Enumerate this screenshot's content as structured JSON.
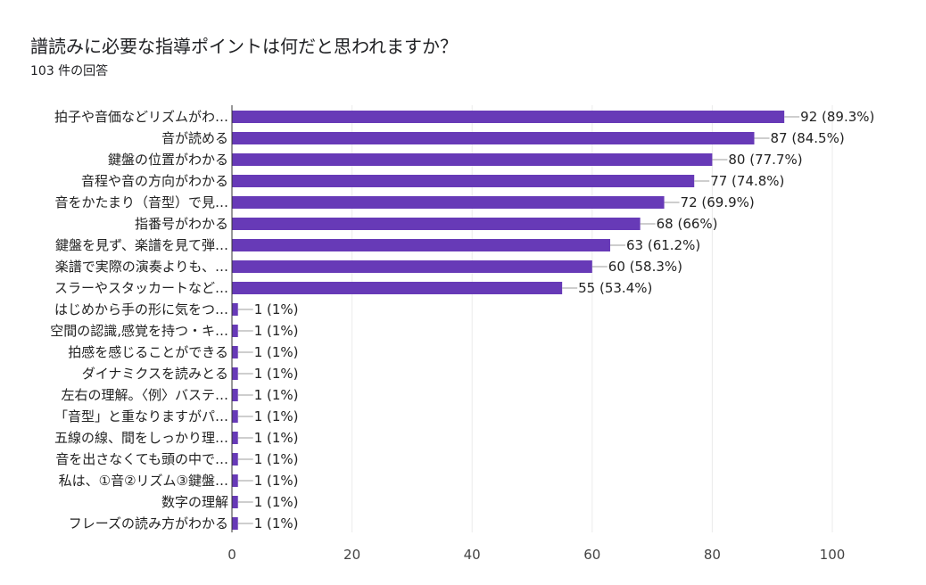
{
  "colors": {
    "bar": "#673ab7",
    "grid": "#ebebeb",
    "axis": "#333333",
    "leader": "#9e9e9e"
  },
  "chart_data": {
    "type": "bar",
    "orientation": "horizontal",
    "title": "譜読みに必要な指導ポイントは何だと思われますか？",
    "subtitle": "103 件の回答",
    "xlim": [
      0,
      100
    ],
    "xticks": [
      0,
      20,
      40,
      60,
      80,
      100
    ],
    "grid": true,
    "categories": [
      "拍子や音価などリズムがわ…",
      "音が読める",
      "鍵盤の位置がわかる",
      "音程や音の方向がわかる",
      "音をかたまり（音型）で見…",
      "指番号がわかる",
      "鍵盤を見ず、楽譜を見て弾…",
      "楽譜で実際の演奏よりも、…",
      "スラーやスタッカートなど…",
      "はじめから手の形に気をつ…",
      "空間の認識,感覚を持つ・キ…",
      "拍感を感じることができる",
      "ダイナミクスを読みとる",
      "左右の理解。〈例〉バステ…",
      "「音型」と重なりますがパ…",
      "五線の線、間をしっかり理…",
      "音を出さなくても頭の中で…",
      "私は、①音②リズム③鍵盤…",
      "数字の理解",
      "フレーズの読み方がわかる"
    ],
    "values": [
      92,
      87,
      80,
      77,
      72,
      68,
      63,
      60,
      55,
      1,
      1,
      1,
      1,
      1,
      1,
      1,
      1,
      1,
      1,
      1
    ],
    "value_labels": [
      "92 (89.3%)",
      "87 (84.5%)",
      "80 (77.7%)",
      "77 (74.8%)",
      "72 (69.9%)",
      "68 (66%)",
      "63 (61.2%)",
      "60 (58.3%)",
      "55 (53.4%)",
      "1 (1%)",
      "1 (1%)",
      "1 (1%)",
      "1 (1%)",
      "1 (1%)",
      "1 (1%)",
      "1 (1%)",
      "1 (1%)",
      "1 (1%)",
      "1 (1%)",
      "1 (1%)"
    ]
  }
}
